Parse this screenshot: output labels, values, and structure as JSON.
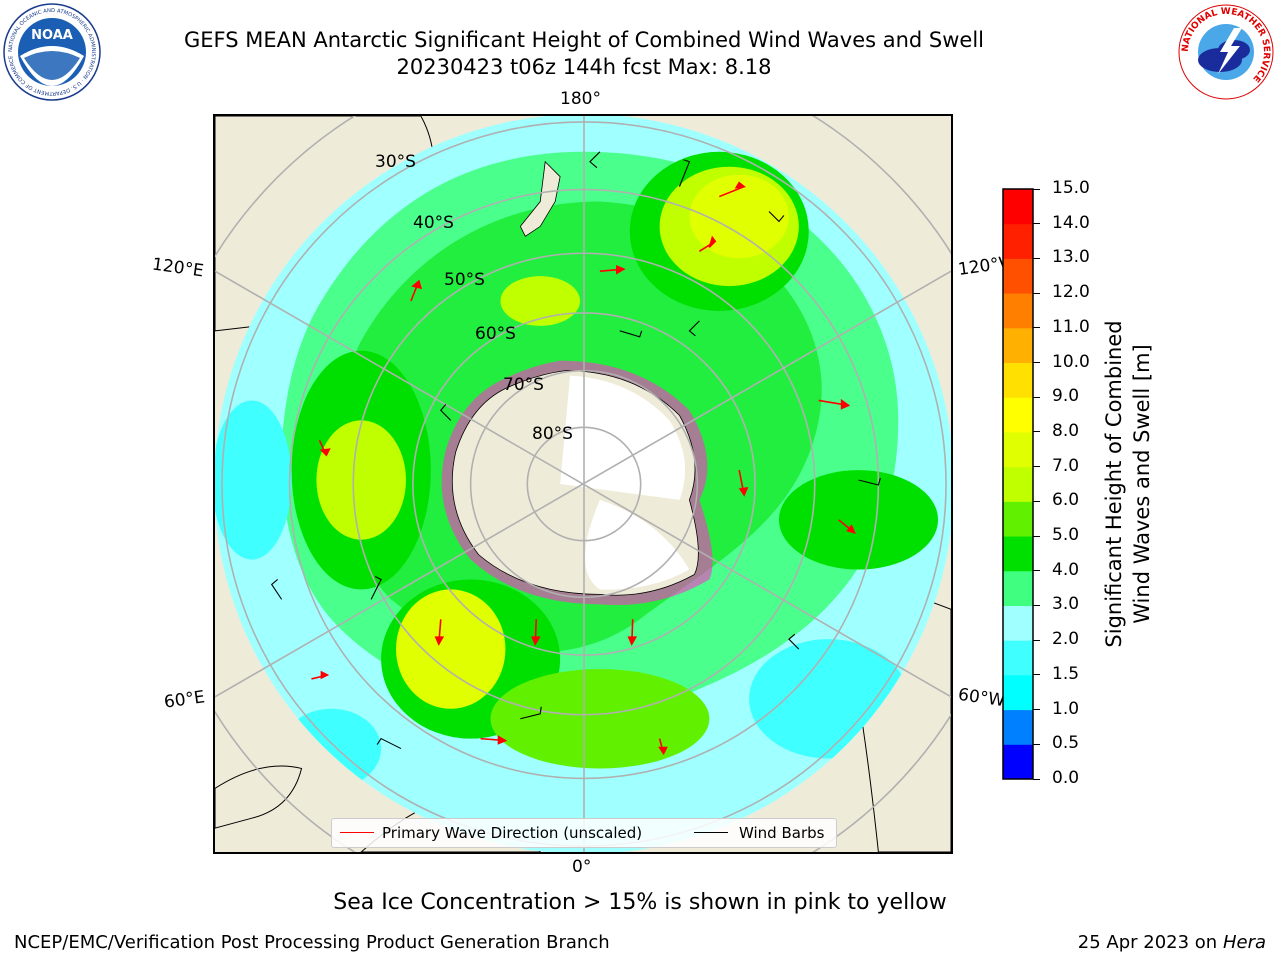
{
  "header": {
    "title_line1": "GEFS MEAN Antarctic Significant Height of Combined Wind Waves and Swell",
    "title_line2": "20230423 t06z 144h fcst   Max: 8.18"
  },
  "logos": {
    "noaa": {
      "text": "NOAA",
      "ring_text": "NATIONAL OCEANIC AND ATMOSPHERIC ADMINISTRATION · U.S. DEPARTMENT OF COMMERCE"
    },
    "nws": {
      "ring_text": "NATIONAL WEATHER SERVICE"
    }
  },
  "map": {
    "projection": "south-polar-stereographic",
    "longitude_labels": {
      "top": "180°",
      "bottom": "0°",
      "upper_left": "120°E",
      "upper_right": "120°W",
      "lower_left": "60°E",
      "lower_right": "60°W"
    },
    "latitude_labels": [
      "30°S",
      "40°S",
      "50°S",
      "60°S",
      "70°S",
      "80°S"
    ],
    "colors": {
      "land": "#efebd9",
      "ice_shelf": "#ffffff",
      "sea_ice_edge": "#ff33cc",
      "graticule": "#b0b0b0",
      "wave_arrow": "#ff0000",
      "wind_barb": "#000000"
    }
  },
  "legend": {
    "wave_direction": "Primary Wave Direction (unscaled)",
    "wind_barbs": "Wind Barbs",
    "wave_color": "#ff0000",
    "barb_color": "#000000"
  },
  "colorbar": {
    "label_line1": "Significant Height of Combined",
    "label_line2": "Wind Waves and Swell [m]",
    "ticks": [
      "0.0",
      "0.5",
      "1.0",
      "1.5",
      "2.0",
      "3.0",
      "4.0",
      "5.0",
      "6.0",
      "7.0",
      "8.0",
      "9.0",
      "10.0",
      "11.0",
      "12.0",
      "13.0",
      "14.0",
      "15.0"
    ],
    "colors": [
      "#0000ff",
      "#0080ff",
      "#00ffff",
      "#40ffff",
      "#a0ffff",
      "#40ff80",
      "#00e000",
      "#60f000",
      "#c0ff00",
      "#e0ff00",
      "#ffff00",
      "#ffe000",
      "#ffb000",
      "#ff8000",
      "#ff5000",
      "#ff2000",
      "#ff0000"
    ]
  },
  "footer": {
    "sea_ice_note": "Sea Ice Concentration > 15% is shown in pink to yellow",
    "credit": "NCEP/EMC/Verification Post Processing Product Generation Branch",
    "date": "25 Apr 2023 on",
    "host": "Hera"
  }
}
